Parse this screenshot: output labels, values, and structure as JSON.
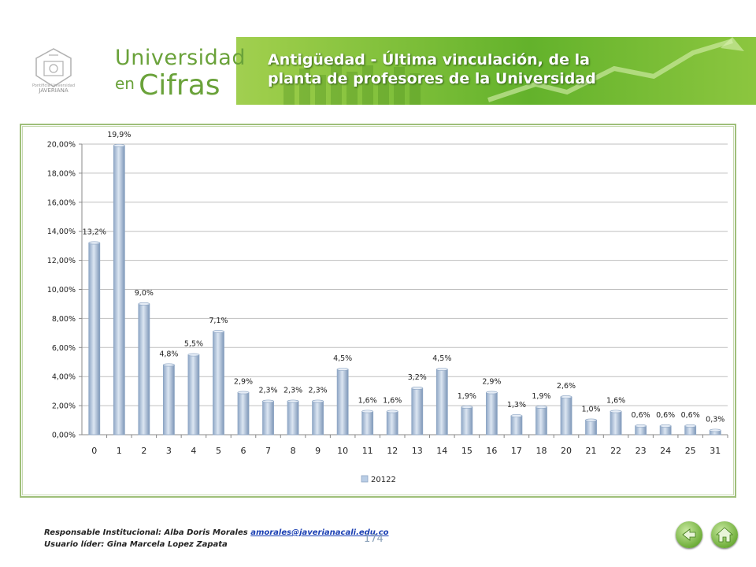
{
  "header": {
    "brand_line1": "Universidad",
    "brand_en": "en",
    "brand_cifras": "Cifras",
    "slide_title": "Antigüedad - Última vinculación, de la planta de profesores de la Universidad",
    "seal_text_1": "Pontificia Universidad",
    "seal_text_2": "JAVERIANA"
  },
  "chart_data": {
    "type": "bar",
    "categories": [
      "0",
      "1",
      "2",
      "3",
      "4",
      "5",
      "6",
      "7",
      "8",
      "9",
      "10",
      "11",
      "12",
      "13",
      "14",
      "15",
      "16",
      "17",
      "18",
      "20",
      "21",
      "22",
      "23",
      "24",
      "25",
      "31"
    ],
    "series": [
      {
        "name": "20122",
        "values": [
          13.2,
          19.9,
          9.0,
          4.8,
          5.5,
          7.1,
          2.9,
          2.3,
          2.3,
          2.3,
          4.5,
          1.6,
          1.6,
          3.2,
          4.5,
          1.9,
          2.9,
          1.3,
          1.9,
          2.6,
          1.0,
          1.6,
          0.6,
          0.6,
          0.6,
          0.3
        ],
        "labels": [
          "13,2%",
          "19,9%",
          "9,0%",
          "4,8%",
          "5,5%",
          "7,1%",
          "2,9%",
          "2,3%",
          "2,3%",
          "2,3%",
          "4,5%",
          "1,6%",
          "1,6%",
          "3,2%",
          "4,5%",
          "1,9%",
          "2,9%",
          "1,3%",
          "1,9%",
          "2,6%",
          "1,0%",
          "1,6%",
          "0,6%",
          "0,6%",
          "0,6%",
          "0,3%"
        ]
      }
    ],
    "yticks": [
      "0,00%",
      "2,00%",
      "4,00%",
      "6,00%",
      "8,00%",
      "10,00%",
      "12,00%",
      "14,00%",
      "16,00%",
      "18,00%",
      "20,00%"
    ],
    "ylim": [
      0,
      20
    ],
    "grid": true,
    "legend_position": "bottom",
    "colors": {
      "bar": "#b9cde5",
      "bar_dark": "#8ea6c4",
      "grid": "#bfbfbf"
    }
  },
  "footer": {
    "responsible_label": "Responsable Institucional: Alba Doris Morales",
    "email": "amorales@javerianacali.edu.co",
    "leader_label": "Usuario líder: Gina Marcela Lopez Zapata",
    "page_number": "174"
  },
  "nav": {
    "back_icon": "back-arrow-icon",
    "home_icon": "home-icon"
  }
}
